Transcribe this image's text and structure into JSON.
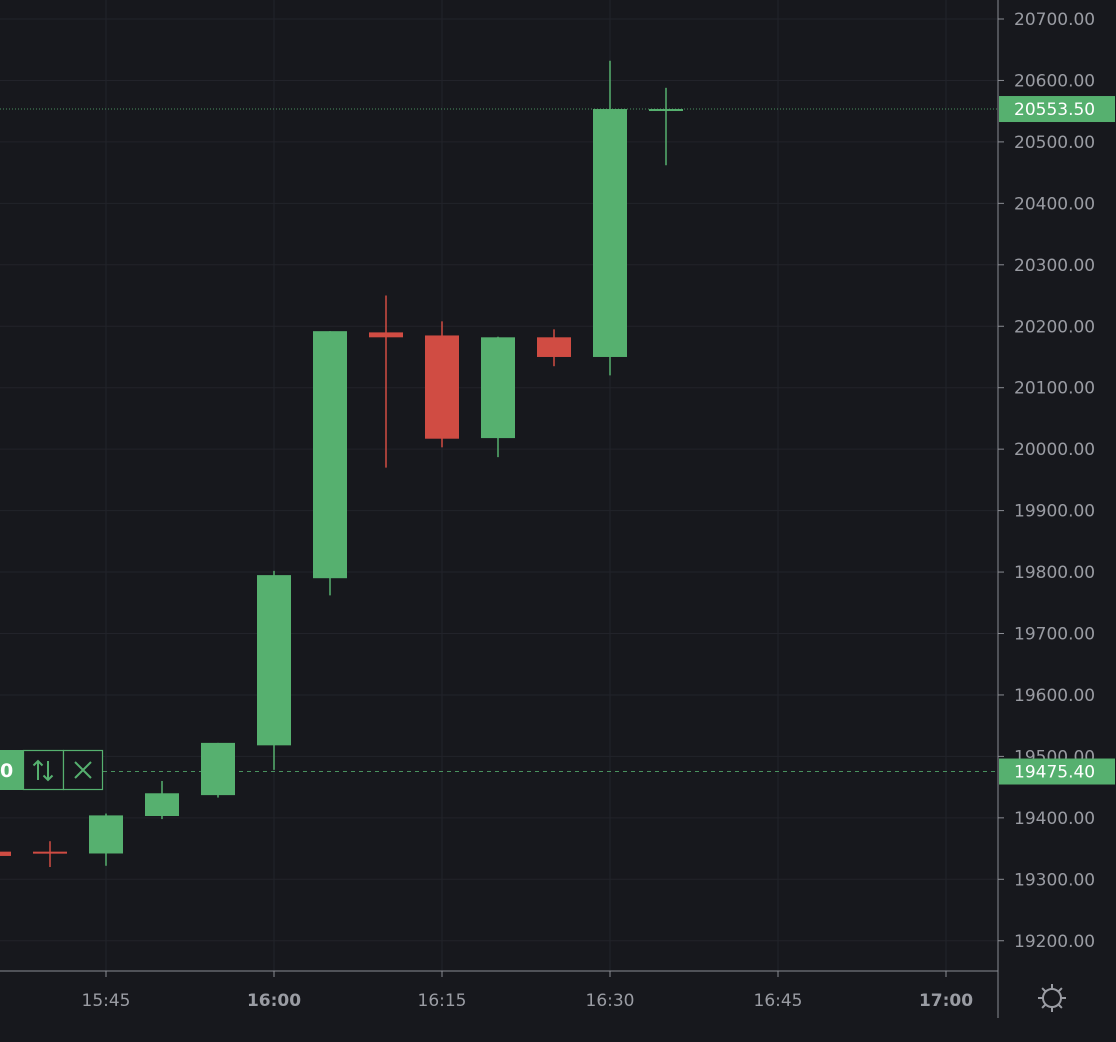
{
  "chart_data": {
    "type": "candlestick",
    "interval_minutes": 5,
    "ylim": [
      19150,
      20720
    ],
    "y_ticks": [
      {
        "value": 19200,
        "label": "19200.00"
      },
      {
        "value": 19300,
        "label": "19300.00"
      },
      {
        "value": 19400,
        "label": "19400.00"
      },
      {
        "value": 19500,
        "label": "19500.00"
      },
      {
        "value": 19600,
        "label": "19600.00"
      },
      {
        "value": 19700,
        "label": "19700.00"
      },
      {
        "value": 19800,
        "label": "19800.00"
      },
      {
        "value": 19900,
        "label": "19900.00"
      },
      {
        "value": 20000,
        "label": "20000.00"
      },
      {
        "value": 20100,
        "label": "20100.00"
      },
      {
        "value": 20200,
        "label": "20200.00"
      },
      {
        "value": 20300,
        "label": "20300.00"
      },
      {
        "value": 20400,
        "label": "20400.00"
      },
      {
        "value": 20500,
        "label": "20500.00"
      },
      {
        "value": 20600,
        "label": "20600.00"
      },
      {
        "value": 20700,
        "label": "20700.00"
      }
    ],
    "x_ticks": [
      {
        "time": "15:45",
        "label": "15:45",
        "bold": false
      },
      {
        "time": "16:00",
        "label": "16:00",
        "bold": true
      },
      {
        "time": "16:15",
        "label": "16:15",
        "bold": false
      },
      {
        "time": "16:30",
        "label": "16:30",
        "bold": false
      },
      {
        "time": "16:45",
        "label": "16:45",
        "bold": false
      },
      {
        "time": "17:00",
        "label": "17:00",
        "bold": true
      }
    ],
    "candles": [
      {
        "time": "15:35",
        "open": 19345,
        "high": 19345,
        "low": 19338,
        "close": 19338
      },
      {
        "time": "15:40",
        "open": 19345,
        "high": 19362,
        "low": 19320,
        "close": 19342
      },
      {
        "time": "15:45",
        "open": 19342,
        "high": 19407,
        "low": 19322,
        "close": 19404
      },
      {
        "time": "15:50",
        "open": 19403,
        "high": 19460,
        "low": 19398,
        "close": 19440
      },
      {
        "time": "15:55",
        "open": 19437,
        "high": 19522,
        "low": 19433,
        "close": 19522
      },
      {
        "time": "16:00",
        "open": 19518,
        "high": 19802,
        "low": 19478,
        "close": 19795
      },
      {
        "time": "16:05",
        "open": 19790,
        "high": 20192,
        "low": 19762,
        "close": 20192
      },
      {
        "time": "16:10",
        "open": 20190,
        "high": 20250,
        "low": 19970,
        "close": 20182
      },
      {
        "time": "16:15",
        "open": 20185,
        "high": 20208,
        "low": 20003,
        "close": 20017
      },
      {
        "time": "16:20",
        "open": 20018,
        "high": 20183,
        "low": 19987,
        "close": 20182
      },
      {
        "time": "16:25",
        "open": 20182,
        "high": 20195,
        "low": 20135,
        "close": 20150
      },
      {
        "time": "16:30",
        "open": 20150,
        "high": 20632,
        "low": 20120,
        "close": 20553.5
      },
      {
        "time": "16:35",
        "open": 20553.5,
        "high": 20588,
        "low": 20462,
        "close": 20553.5
      }
    ],
    "last_price": {
      "value": 20553.5,
      "label": "20553.50"
    },
    "order_line": {
      "value": 19475.4,
      "label": "19475.40",
      "qty_label": "0"
    },
    "grid": true
  },
  "colors": {
    "background": "#17181d",
    "grid": "#22232a",
    "up": "#56b06f",
    "down": "#d04c43",
    "axis_line": "#8a8c93",
    "axis_text": "#9a9ca3",
    "label_text": "#ffffff"
  },
  "icons": {
    "reverse": "up-down-arrows-icon",
    "close": "close-x-icon",
    "settings": "gear-icon"
  }
}
